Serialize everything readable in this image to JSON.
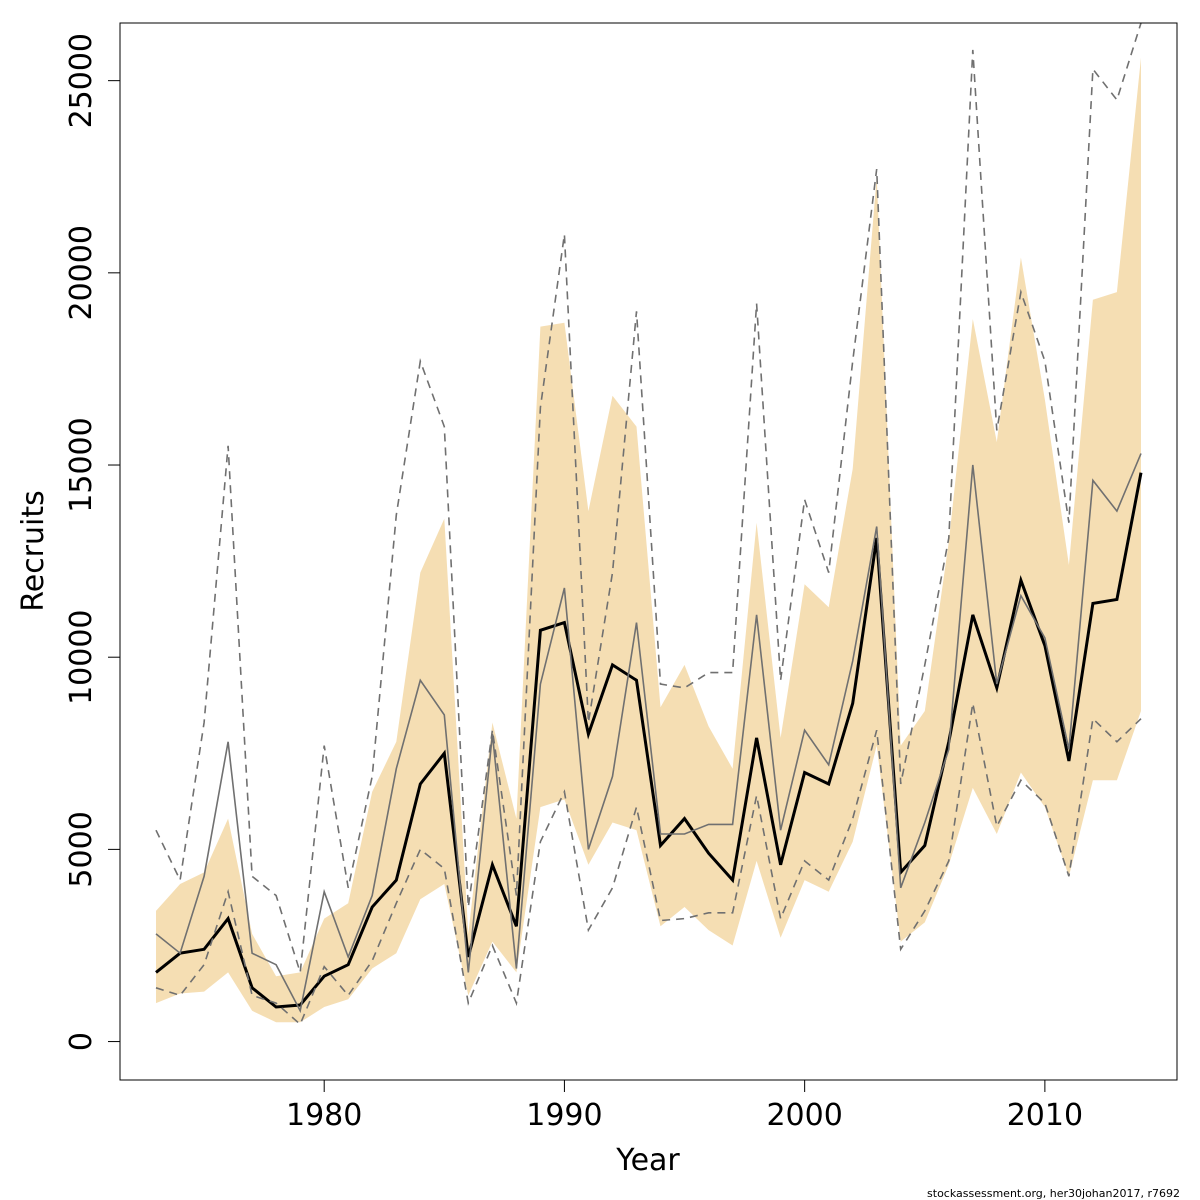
{
  "chart_data": {
    "type": "line",
    "xlabel": "Year",
    "ylabel": "Recruits",
    "xlim": [
      1971.5,
      2015.5
    ],
    "ylim": [
      -1000,
      26500
    ],
    "x_ticks": [
      1980,
      1990,
      2000,
      2010
    ],
    "y_ticks": [
      0,
      5000,
      10000,
      15000,
      20000,
      25000
    ],
    "grid": false,
    "legend": "none",
    "x": [
      1973,
      1974,
      1975,
      1976,
      1977,
      1978,
      1979,
      1980,
      1981,
      1982,
      1983,
      1984,
      1985,
      1986,
      1987,
      1988,
      1989,
      1990,
      1991,
      1992,
      1993,
      1994,
      1995,
      1996,
      1997,
      1998,
      1999,
      2000,
      2001,
      2002,
      2003,
      2004,
      2005,
      2006,
      2007,
      2008,
      2009,
      2010,
      2011,
      2012,
      2013,
      2014
    ],
    "series": [
      {
        "style": "band",
        "color": "#f5deb3",
        "lower": [
          1000,
          1250,
          1300,
          1800,
          800,
          500,
          500,
          900,
          1100,
          1900,
          2300,
          3700,
          4100,
          1200,
          2600,
          1800,
          6100,
          6300,
          4600,
          5700,
          5500,
          3000,
          3500,
          2900,
          2500,
          4700,
          2700,
          4200,
          3900,
          5200,
          7700,
          2600,
          3100,
          4600,
          6600,
          5400,
          7000,
          6100,
          4300,
          6800,
          6800,
          8600
        ],
        "upper": [
          3400,
          4100,
          4400,
          5800,
          2800,
          1700,
          1800,
          3200,
          3600,
          6500,
          7800,
          12200,
          13600,
          2800,
          8300,
          5800,
          18600,
          18700,
          13800,
          16800,
          16000,
          8700,
          9800,
          8200,
          7100,
          13500,
          7900,
          11900,
          11300,
          14900,
          22500,
          7700,
          8600,
          13000,
          18800,
          15600,
          20400,
          16700,
          12400,
          19300,
          19500,
          25600
        ]
      },
      {
        "style": "solid",
        "color": "#000000",
        "values": [
          1800,
          2300,
          2400,
          3200,
          1400,
          900,
          950,
          1700,
          2000,
          3500,
          4200,
          6700,
          7500,
          2200,
          4600,
          3000,
          10700,
          10900,
          8000,
          9800,
          9400,
          5100,
          5800,
          4900,
          4200,
          7900,
          4600,
          7000,
          6700,
          8800,
          13100,
          4400,
          5100,
          7800,
          11100,
          9200,
          12000,
          10300,
          7300,
          11400,
          11500,
          14800
        ]
      },
      {
        "style": "solid",
        "color": "#707070",
        "values": [
          2800,
          2300,
          4300,
          7800,
          2300,
          2000,
          800,
          3900,
          2200,
          3800,
          7100,
          9400,
          8500,
          1800,
          8000,
          1900,
          9300,
          11800,
          5000,
          6900,
          10900,
          5400,
          5400,
          5650,
          5650,
          11100,
          5500,
          8100,
          7200,
          9900,
          13400,
          4000,
          5700,
          7600,
          15000,
          9300,
          11600,
          10500,
          7600,
          14600,
          13800,
          15300
        ]
      },
      {
        "style": "dashed",
        "color": "#707070",
        "values": [
          5500,
          4200,
          8300,
          15500,
          4300,
          3800,
          1800,
          7700,
          4000,
          6900,
          13700,
          17700,
          16000,
          3500,
          8100,
          3800,
          16500,
          21000,
          8300,
          12200,
          19000,
          9300,
          9200,
          9600,
          9600,
          19200,
          9400,
          14100,
          12200,
          17700,
          22700,
          6700,
          9800,
          13100,
          25800,
          15900,
          19500,
          17700,
          13500,
          25300,
          24500,
          26900
        ]
      },
      {
        "style": "dashed",
        "color": "#707070",
        "values": [
          1400,
          1200,
          2000,
          3900,
          1200,
          1000,
          450,
          1950,
          1200,
          2100,
          3600,
          5000,
          4500,
          1000,
          2500,
          1000,
          5200,
          6500,
          2900,
          4000,
          6100,
          3150,
          3200,
          3350,
          3350,
          6400,
          3200,
          4700,
          4200,
          5800,
          8100,
          2400,
          3400,
          4700,
          8800,
          5600,
          6800,
          6200,
          4300,
          8400,
          7800,
          8400
        ]
      }
    ]
  },
  "footer": "stockassessment.org, her30johan2017, r7692"
}
